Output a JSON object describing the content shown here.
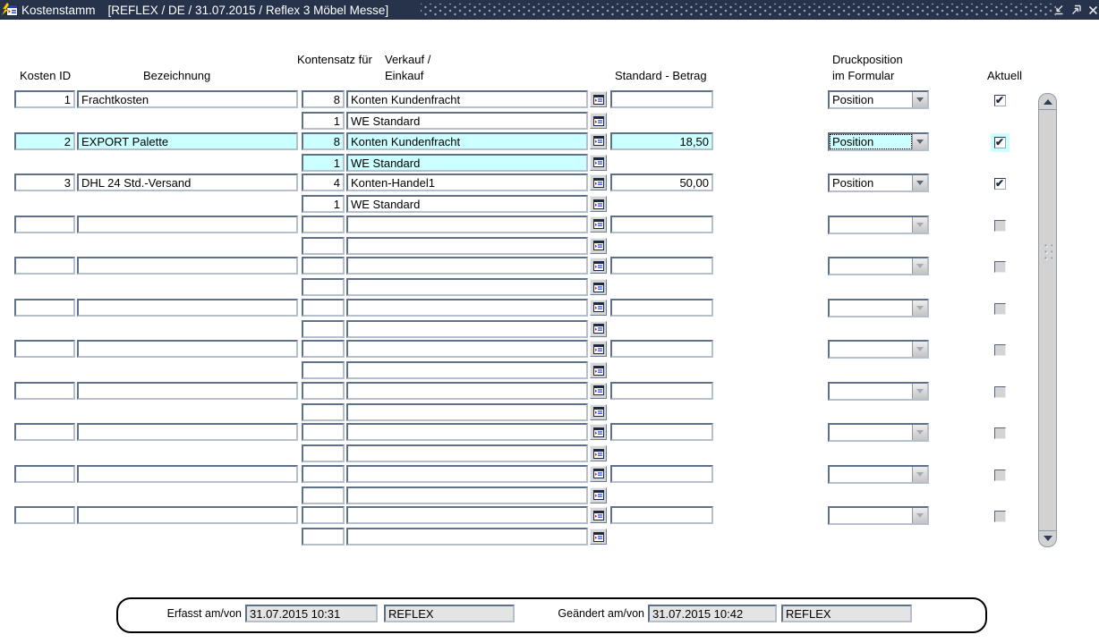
{
  "window": {
    "title": "Kostenstamm",
    "subtitle": "[REFLEX / DE / 31.07.2015 / Reflex 3 Möbel Messe]"
  },
  "colors": {
    "titlebar_bg": "#26334b",
    "selection_highlight": "#ccffff",
    "field_border_dark": "#5f7089",
    "field_border_light": "#b6bfcc",
    "disabled_gray": "#d4d4d4",
    "readonly_field_bg": "#e4e4e4"
  },
  "icons": {
    "window_icon": "form-window-with-lightning",
    "restore_icon": "arrow-down-left",
    "maximize_icon": "arrow-up-right",
    "close_icon": "✕",
    "lov_button_icon": "list-of-values-dialog",
    "dropdown_arrow": "▼",
    "checkbox_check": "✔",
    "scroll_up": "▲",
    "scroll_down": "▼"
  },
  "table": {
    "headers": {
      "kosten_id": "Kosten ID",
      "bezeichnung": "Bezeichnung",
      "kontensatz": "Kontensatz für",
      "verkauf_line1": "Verkauf /",
      "verkauf_line2": "Einkauf",
      "betrag": "Standard - Betrag",
      "druckposition_line1": "Druckposition",
      "druckposition_line2": "im Formular",
      "aktuell": "Aktuell"
    },
    "rows": [
      {
        "kosten_id": "1",
        "bezeichnung": "Frachtkosten",
        "kontensatz": "8",
        "verkauf": "Konten Kundenfracht",
        "betrag": "",
        "druckposition": "Position",
        "aktuell": true,
        "selected": false,
        "filled": true,
        "sub": {
          "kontensatz": "1",
          "verkauf": "WE Standard"
        }
      },
      {
        "kosten_id": "2",
        "bezeichnung": "EXPORT Palette",
        "kontensatz": "8",
        "verkauf": "Konten Kundenfracht",
        "betrag": "18,50",
        "druckposition": "Position",
        "aktuell": true,
        "selected": true,
        "filled": true,
        "sub": {
          "kontensatz": "1",
          "verkauf": "WE Standard"
        }
      },
      {
        "kosten_id": "3",
        "bezeichnung": "DHL 24 Std.-Versand",
        "kontensatz": "4",
        "verkauf": "Konten-Handel1",
        "betrag": "50,00",
        "druckposition": "Position",
        "aktuell": true,
        "selected": false,
        "filled": true,
        "sub": {
          "kontensatz": "1",
          "verkauf": "WE Standard"
        }
      },
      {
        "kosten_id": "",
        "bezeichnung": "",
        "kontensatz": "",
        "verkauf": "",
        "betrag": "",
        "druckposition": "",
        "aktuell": false,
        "selected": false,
        "filled": false,
        "sub": {
          "kontensatz": "",
          "verkauf": ""
        }
      },
      {
        "kosten_id": "",
        "bezeichnung": "",
        "kontensatz": "",
        "verkauf": "",
        "betrag": "",
        "druckposition": "",
        "aktuell": false,
        "selected": false,
        "filled": false,
        "sub": {
          "kontensatz": "",
          "verkauf": ""
        }
      },
      {
        "kosten_id": "",
        "bezeichnung": "",
        "kontensatz": "",
        "verkauf": "",
        "betrag": "",
        "druckposition": "",
        "aktuell": false,
        "selected": false,
        "filled": false,
        "sub": {
          "kontensatz": "",
          "verkauf": ""
        }
      },
      {
        "kosten_id": "",
        "bezeichnung": "",
        "kontensatz": "",
        "verkauf": "",
        "betrag": "",
        "druckposition": "",
        "aktuell": false,
        "selected": false,
        "filled": false,
        "sub": {
          "kontensatz": "",
          "verkauf": ""
        }
      },
      {
        "kosten_id": "",
        "bezeichnung": "",
        "kontensatz": "",
        "verkauf": "",
        "betrag": "",
        "druckposition": "",
        "aktuell": false,
        "selected": false,
        "filled": false,
        "sub": {
          "kontensatz": "",
          "verkauf": ""
        }
      },
      {
        "kosten_id": "",
        "bezeichnung": "",
        "kontensatz": "",
        "verkauf": "",
        "betrag": "",
        "druckposition": "",
        "aktuell": false,
        "selected": false,
        "filled": false,
        "sub": {
          "kontensatz": "",
          "verkauf": ""
        }
      },
      {
        "kosten_id": "",
        "bezeichnung": "",
        "kontensatz": "",
        "verkauf": "",
        "betrag": "",
        "druckposition": "",
        "aktuell": false,
        "selected": false,
        "filled": false,
        "sub": {
          "kontensatz": "",
          "verkauf": ""
        }
      },
      {
        "kosten_id": "",
        "bezeichnung": "",
        "kontensatz": "",
        "verkauf": "",
        "betrag": "",
        "druckposition": "",
        "aktuell": false,
        "selected": false,
        "filled": false,
        "sub": {
          "kontensatz": "",
          "verkauf": ""
        }
      }
    ]
  },
  "footer": {
    "erfasst_label": "Erfasst am/von",
    "erfasst_datetime": "31.07.2015 10:31",
    "erfasst_user": "REFLEX",
    "geaendert_label": "Geändert am/von",
    "geaendert_datetime": "31.07.2015 10:42",
    "geaendert_user": "REFLEX"
  }
}
